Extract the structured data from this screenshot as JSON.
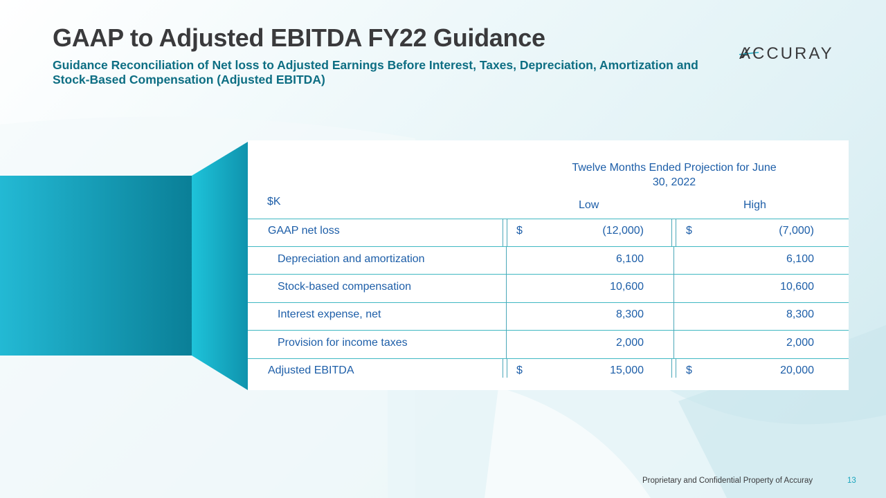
{
  "header": {
    "title": "GAAP to Adjusted EBITDA FY22 Guidance",
    "subtitle": "Guidance Reconciliation of Net loss to Adjusted Earnings Before Interest, Taxes, Depreciation, Amortization and Stock-Based Compensation (Adjusted EBITDA)"
  },
  "logo": {
    "text": "ACCURAY"
  },
  "colors": {
    "accent": "#1aa5bd",
    "text_blue": "#1d5ea8",
    "title": "#3a3a3c",
    "subtitle": "#0d6e83"
  },
  "table": {
    "period_header": "Twelve Months Ended Projection for June 30, 2022",
    "unit_label": "$K",
    "col_low": "Low",
    "col_high": "High",
    "rows": [
      {
        "label": "GAAP net loss",
        "low_dollar": "$",
        "low": "(12,000)",
        "high_dollar": "$",
        "high": "(7,000)"
      },
      {
        "label": "Depreciation and amortization",
        "low_dollar": "",
        "low": "6,100",
        "high_dollar": "",
        "high": "6,100"
      },
      {
        "label": "Stock-based compensation",
        "low_dollar": "",
        "low": "10,600",
        "high_dollar": "",
        "high": "10,600"
      },
      {
        "label": "Interest expense, net",
        "low_dollar": "",
        "low": "8,300",
        "high_dollar": "",
        "high": "8,300"
      },
      {
        "label": "Provision for income taxes",
        "low_dollar": "",
        "low": "2,000",
        "high_dollar": "",
        "high": "2,000"
      },
      {
        "label": "Adjusted EBITDA",
        "low_dollar": "$",
        "low": "15,000",
        "high_dollar": "$",
        "high": "20,000"
      }
    ]
  },
  "footer": {
    "text": "Proprietary and Confidential Property of Accuray",
    "page": "13"
  }
}
